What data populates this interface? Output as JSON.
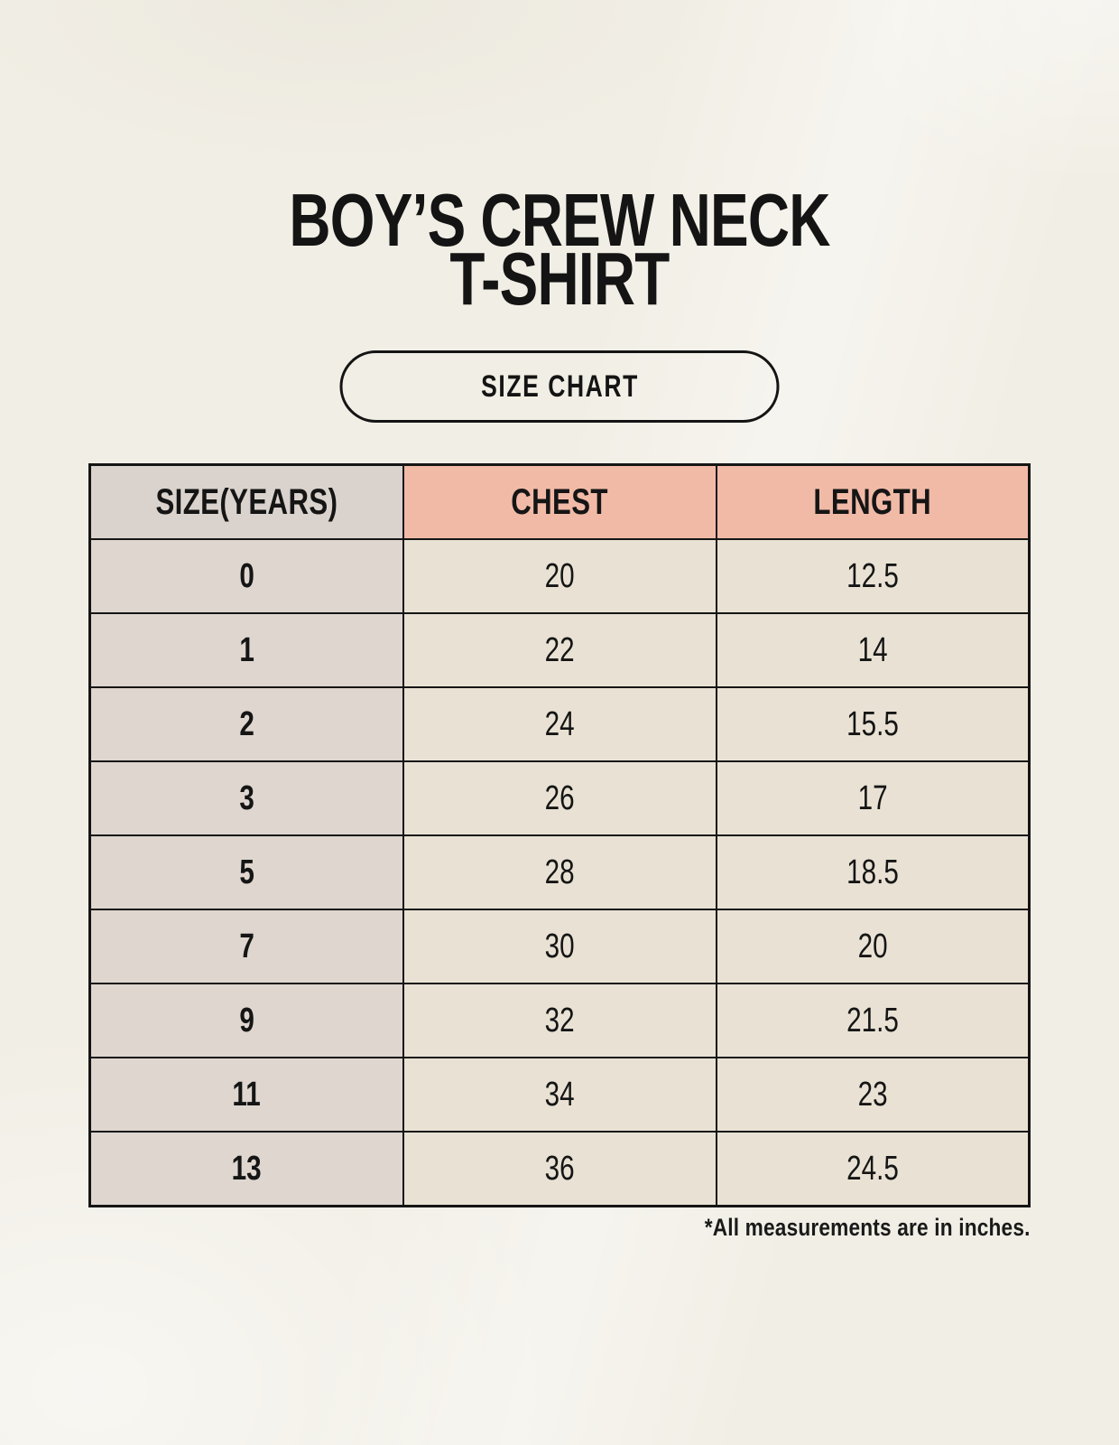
{
  "page": {
    "title_line1": "BOY’S CREW NECK",
    "title_line2": "T-SHIRT",
    "badge_label": "SIZE CHART",
    "footnote": "*All measurements are in inches."
  },
  "table": {
    "headers": [
      "SIZE(YEARS)",
      "CHEST",
      "LENGTH"
    ],
    "rows": [
      [
        "0",
        "20",
        "12.5"
      ],
      [
        "1",
        "22",
        "14"
      ],
      [
        "2",
        "24",
        "15.5"
      ],
      [
        "3",
        "26",
        "17"
      ],
      [
        "5",
        "28",
        "18.5"
      ],
      [
        "7",
        "30",
        "20"
      ],
      [
        "9",
        "32",
        "21.5"
      ],
      [
        "11",
        "34",
        "23"
      ],
      [
        "13",
        "36",
        "24.5"
      ]
    ]
  },
  "colors": {
    "background": "#f1eee5",
    "accent_header": "#f1baa7",
    "neutral_header": "#dad3cd",
    "row_label_bg": "#ded6cf",
    "cell_bg": "#e9e2d4",
    "border": "#151515",
    "text": "#141414"
  },
  "chart_data": {
    "type": "table",
    "title": "BOY’S CREW NECK T-SHIRT",
    "subtitle": "SIZE CHART",
    "columns": [
      "SIZE(YEARS)",
      "CHEST",
      "LENGTH"
    ],
    "rows": [
      [
        0,
        20,
        12.5
      ],
      [
        1,
        22,
        14
      ],
      [
        2,
        24,
        15.5
      ],
      [
        3,
        26,
        17
      ],
      [
        5,
        28,
        18.5
      ],
      [
        7,
        30,
        20
      ],
      [
        9,
        32,
        21.5
      ],
      [
        11,
        34,
        23
      ],
      [
        13,
        36,
        24.5
      ]
    ],
    "units": "inches",
    "note": "*All measurements are in inches."
  }
}
